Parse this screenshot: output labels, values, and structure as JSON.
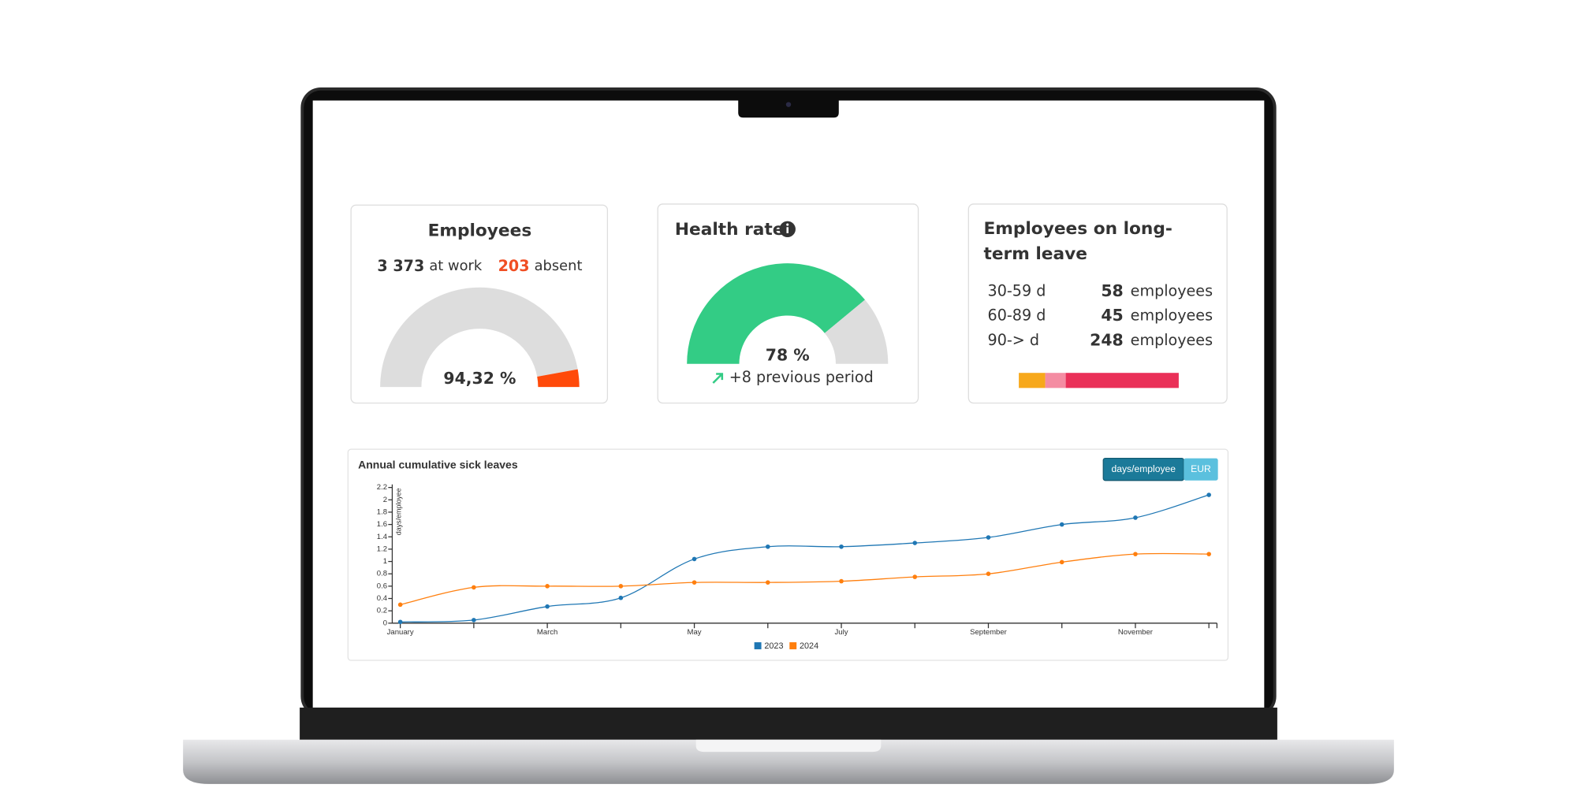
{
  "employees": {
    "title": "Employees",
    "at_work": {
      "value": 3373,
      "label": "3 373"
    },
    "at_work_text": "at work",
    "absent": 203,
    "absent_text": "absent",
    "rate": "94,32 %",
    "colors": [
      "#dddddd",
      "#ff4a0a"
    ]
  },
  "health_rate": {
    "title": "Health rate",
    "value": {
      "value": 78,
      "label": "78 %"
    },
    "trend": "+8 previous period",
    "colors": [
      "#33cc85",
      "#dddddd"
    ]
  },
  "long_term_leave": {
    "title": "Employees on long-term leave",
    "rows": [
      {
        "range": "30-59 d",
        "count": 58,
        "unit": "employees",
        "color": "#f7a81b"
      },
      {
        "range": "60-89 d",
        "count": 45,
        "unit": "employees",
        "color": "#f48ca2"
      },
      {
        "range": "90-> d",
        "count": 248,
        "unit": "employees",
        "color": "#ea3058"
      }
    ]
  },
  "chart_data": {
    "type": "line",
    "title": "Annual cumulative sick leaves",
    "y_label": "days/employee",
    "buttons": [
      "days/employee",
      "EUR"
    ],
    "categories": [
      "January",
      null,
      "March",
      null,
      "May",
      null,
      "July",
      null,
      "September",
      null,
      "November",
      null
    ],
    "series": [
      {
        "name": "2023",
        "color": "#1f77b4",
        "values": [
          0.02,
          0.05,
          0.27,
          0.41,
          1.04,
          1.24,
          1.24,
          1.3,
          1.39,
          1.6,
          1.71,
          2.08
        ]
      },
      {
        "name": "2024",
        "color": "#ff7f0e",
        "values": [
          0.3,
          0.58,
          0.6,
          0.6,
          0.66,
          0.66,
          0.68,
          0.75,
          0.8,
          0.99,
          1.12,
          1.12
        ]
      }
    ],
    "ylim": [
      0,
      2.2
    ],
    "yticks": [
      0,
      0.2,
      0.4,
      0.6,
      0.8,
      1,
      1.2,
      1.4,
      1.6,
      1.8,
      2,
      2.2
    ],
    "grid": false
  }
}
